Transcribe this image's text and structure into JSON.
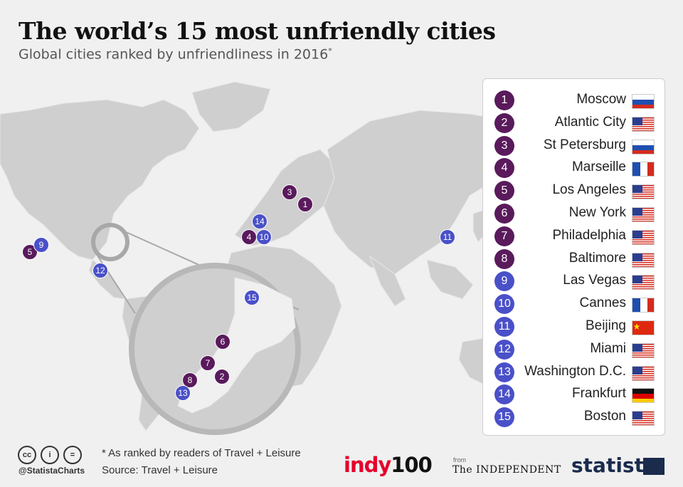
{
  "title": "The world’s 15 most unfriendly cities",
  "subtitle": "Global cities ranked by unfriendliness in 2016",
  "subtitle_marker": "*",
  "colors": {
    "purple": "#5a1a5c",
    "blue": "#4a50c8",
    "land": "#cfcfcf",
    "ocean": "#f0f0f0"
  },
  "cities": [
    {
      "rank": "1",
      "name": "Moscow",
      "flag": "russia",
      "color": "purple"
    },
    {
      "rank": "2",
      "name": "Atlantic City",
      "flag": "usa",
      "color": "purple"
    },
    {
      "rank": "3",
      "name": "St Petersburg",
      "flag": "russia",
      "color": "purple"
    },
    {
      "rank": "4",
      "name": "Marseille",
      "flag": "france",
      "color": "purple"
    },
    {
      "rank": "5",
      "name": "Los Angeles",
      "flag": "usa",
      "color": "purple"
    },
    {
      "rank": "6",
      "name": "New York",
      "flag": "usa",
      "color": "purple"
    },
    {
      "rank": "7",
      "name": "Philadelphia",
      "flag": "usa",
      "color": "purple"
    },
    {
      "rank": "8",
      "name": "Baltimore",
      "flag": "usa",
      "color": "purple"
    },
    {
      "rank": "9",
      "name": "Las Vegas",
      "flag": "usa",
      "color": "blue"
    },
    {
      "rank": "10",
      "name": "Cannes",
      "flag": "france",
      "color": "blue"
    },
    {
      "rank": "11",
      "name": "Beijing",
      "flag": "china",
      "color": "blue"
    },
    {
      "rank": "12",
      "name": "Miami",
      "flag": "usa",
      "color": "blue"
    },
    {
      "rank": "13",
      "name": "Washington D.C.",
      "flag": "usa",
      "color": "blue"
    },
    {
      "rank": "14",
      "name": "Frankfurt",
      "flag": "germany",
      "color": "blue"
    },
    {
      "rank": "15",
      "name": "Boston",
      "flag": "usa",
      "color": "blue"
    }
  ],
  "footnote": "* As ranked by readers of Travel + Leisure",
  "source": "Source: Travel + Leisure",
  "handle": "@StatistaCharts",
  "cc_icons": [
    "cc",
    "i",
    "="
  ],
  "logos": {
    "indy_a": "indy",
    "indy_b": "100",
    "from": "from",
    "independent": "The INDEPENDENT",
    "statista": "statista"
  }
}
